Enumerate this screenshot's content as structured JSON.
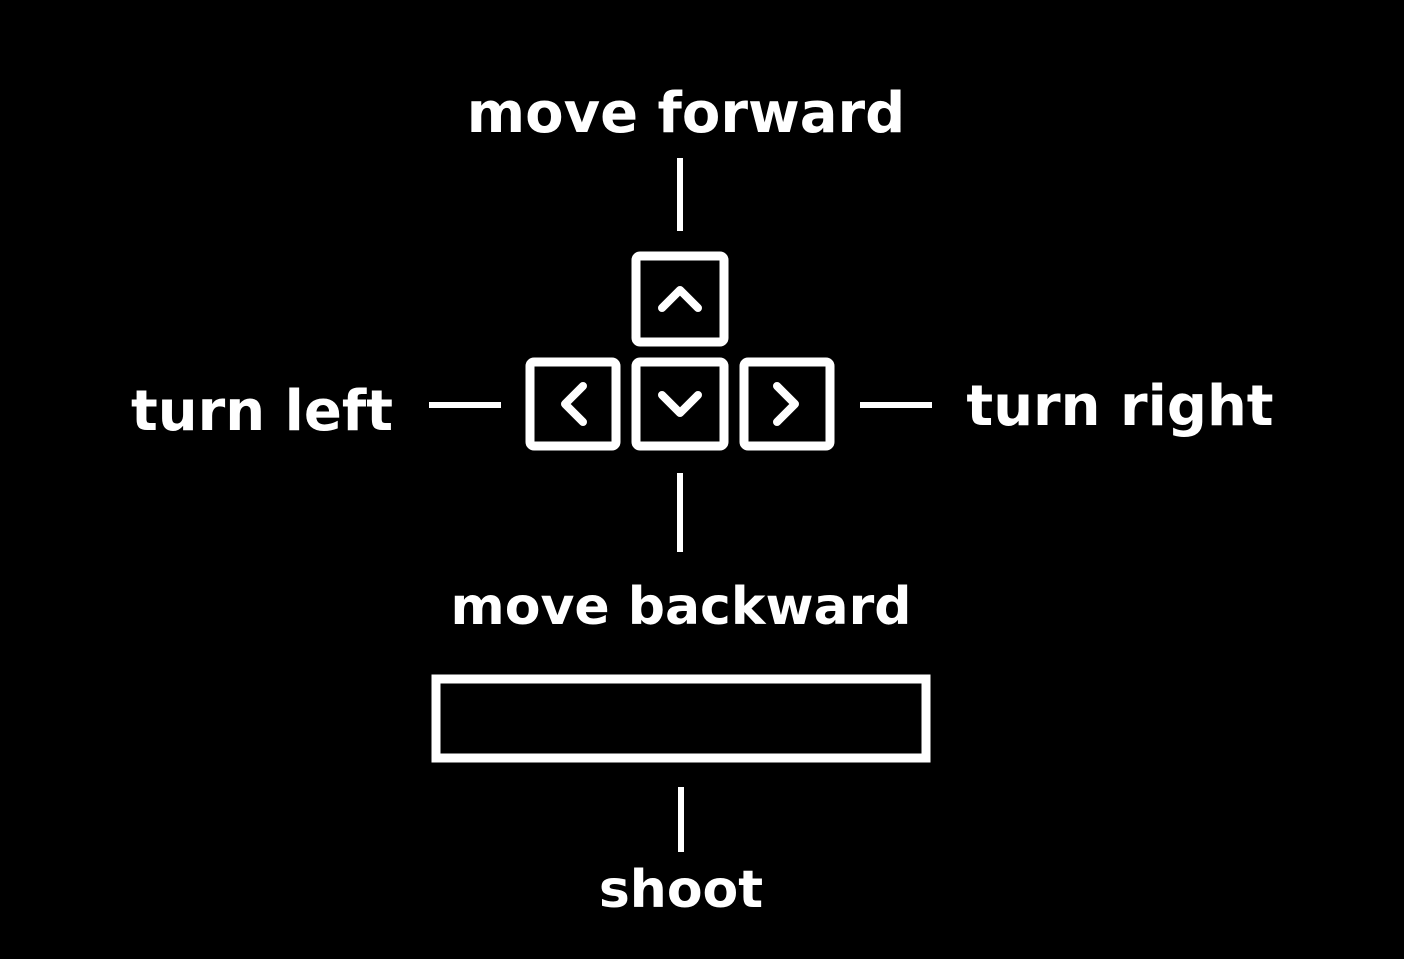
{
  "colors": {
    "background": "#000000",
    "foreground": "#ffffff"
  },
  "labels": {
    "move_forward": "move forward",
    "move_backward": "move backward",
    "turn_left": "turn left",
    "turn_right": "turn right",
    "shoot": "shoot"
  },
  "keys": {
    "up": "chevron-up-icon",
    "down": "chevron-down-icon",
    "left": "chevron-left-icon",
    "right": "chevron-right-icon",
    "space": "spacebar-key"
  }
}
